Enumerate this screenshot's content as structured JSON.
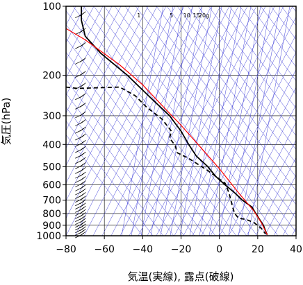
{
  "chart_data": {
    "type": "line",
    "title": "",
    "xlabel": "気温(実線), 露点(破線)",
    "ylabel": "気圧(hPa)",
    "xlim": [
      -80,
      40
    ],
    "ylim": [
      1000,
      100
    ],
    "y_scale": "log",
    "x_ticks": [
      -80,
      -60,
      -40,
      -20,
      0,
      20,
      40
    ],
    "x_tick_labels": [
      "−80",
      "−60",
      "−40",
      "−20",
      "0",
      "20",
      "40"
    ],
    "y_ticks": [
      100,
      200,
      300,
      400,
      500,
      600,
      700,
      800,
      900,
      1000
    ],
    "y_tick_labels": [
      "100",
      "200",
      "300",
      "400",
      "500",
      "600",
      "700",
      "800",
      "900",
      "1000"
    ],
    "grid": true,
    "mixing_ratio_labels": [
      {
        "text": "1",
        "t": -42
      },
      {
        "text": "5",
        "t": -25
      },
      {
        "text": "10",
        "t": -17
      },
      {
        "text": "15",
        "t": -12
      },
      {
        "text": "20g",
        "t": -8
      }
    ],
    "series": [
      {
        "role": "temperature",
        "color": "#000000",
        "style": "solid",
        "points": [
          [
            -72,
            100
          ],
          [
            -72,
            115
          ],
          [
            -70,
            135
          ],
          [
            -62,
            160
          ],
          [
            -48,
            200
          ],
          [
            -36,
            250
          ],
          [
            -26,
            300
          ],
          [
            -20,
            350
          ],
          [
            -16,
            400
          ],
          [
            -12,
            450
          ],
          [
            -6,
            500
          ],
          [
            -2,
            550
          ],
          [
            3,
            600
          ],
          [
            8,
            650
          ],
          [
            12,
            700
          ],
          [
            17,
            750
          ],
          [
            19,
            800
          ],
          [
            21,
            850
          ],
          [
            23,
            900
          ],
          [
            24,
            950
          ],
          [
            25,
            990
          ]
        ]
      },
      {
        "role": "dewpoint",
        "color": "#000000",
        "style": "dashed",
        "points": [
          [
            -80,
            225
          ],
          [
            -74,
            228
          ],
          [
            -52,
            225
          ],
          [
            -44,
            245
          ],
          [
            -38,
            275
          ],
          [
            -30,
            310
          ],
          [
            -25,
            350
          ],
          [
            -26,
            375
          ],
          [
            -23,
            405
          ],
          [
            -22,
            435
          ],
          [
            -16,
            460
          ],
          [
            -6,
            520
          ],
          [
            3,
            590
          ],
          [
            5,
            650
          ],
          [
            6,
            700
          ],
          [
            7,
            755
          ],
          [
            8,
            800
          ],
          [
            10,
            838
          ],
          [
            14,
            850
          ],
          [
            18,
            875
          ],
          [
            22,
            930
          ],
          [
            24,
            980
          ]
        ]
      },
      {
        "role": "reference",
        "color": "#ff0000",
        "style": "solid",
        "points": [
          [
            -80,
            125
          ],
          [
            -70,
            140
          ],
          [
            -52,
            180
          ],
          [
            -40,
            220
          ],
          [
            -30,
            270
          ],
          [
            -20,
            330
          ],
          [
            -10,
            410
          ],
          [
            0,
            510
          ],
          [
            10,
            650
          ],
          [
            18,
            780
          ],
          [
            22,
            880
          ],
          [
            25,
            990
          ]
        ]
      }
    ],
    "wind_barbs": {
      "x": -73,
      "pressures": [
        110,
        130,
        150,
        175,
        200,
        225,
        250,
        275,
        300,
        325,
        350,
        375,
        400,
        425,
        450,
        475,
        500,
        525,
        550,
        575,
        600,
        625,
        650,
        675,
        700,
        725,
        750,
        775,
        800,
        825,
        850,
        875,
        900,
        925,
        950,
        975,
        1000
      ]
    },
    "colors": {
      "grid": "#000000",
      "isotherm_lines": "#4040d8",
      "temperature": "#000000",
      "dewpoint": "#000000",
      "reference": "#ff0000"
    }
  }
}
